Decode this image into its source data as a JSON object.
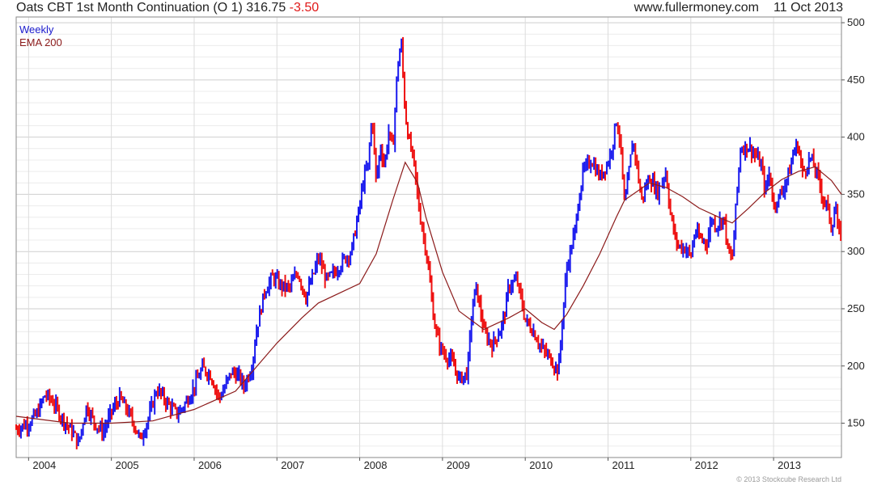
{
  "header": {
    "instrument": "Oats CBT 1st Month Continuation (O 1)",
    "price": "316.75",
    "change": "-3.50",
    "website": "www.fullermoney.com",
    "date": "11 Oct 2013"
  },
  "legend": {
    "weekly": "Weekly",
    "ema": "EMA 200"
  },
  "copyright": "© 2013 Stockcube Research Ltd",
  "colors": {
    "up": "#1a1aee",
    "down": "#ee1111",
    "ema": "#8b1a1a",
    "grid": "#dcdcdc"
  },
  "chart_data": {
    "type": "line",
    "x_range": [
      2003.85,
      2013.82
    ],
    "y_range": [
      120,
      505
    ],
    "y_axis_position": "right",
    "y_ticks": [
      150,
      200,
      250,
      300,
      350,
      400,
      450,
      500
    ],
    "x_ticks": [
      "2004",
      "2005",
      "2006",
      "2007",
      "2008",
      "2009",
      "2010",
      "2011",
      "2012",
      "2013"
    ],
    "grid": true,
    "series": [
      {
        "name": "Weekly",
        "points": [
          [
            2003.85,
            145
          ],
          [
            2004.0,
            150
          ],
          [
            2004.1,
            158
          ],
          [
            2004.2,
            175
          ],
          [
            2004.3,
            168
          ],
          [
            2004.4,
            155
          ],
          [
            2004.5,
            145
          ],
          [
            2004.55,
            140
          ],
          [
            2004.6,
            132
          ],
          [
            2004.7,
            165
          ],
          [
            2004.8,
            150
          ],
          [
            2004.9,
            142
          ],
          [
            2005.0,
            160
          ],
          [
            2005.1,
            172
          ],
          [
            2005.2,
            160
          ],
          [
            2005.3,
            145
          ],
          [
            2005.35,
            135
          ],
          [
            2005.45,
            155
          ],
          [
            2005.55,
            180
          ],
          [
            2005.7,
            165
          ],
          [
            2005.8,
            158
          ],
          [
            2005.9,
            168
          ],
          [
            2006.0,
            182
          ],
          [
            2006.1,
            198
          ],
          [
            2006.2,
            192
          ],
          [
            2006.3,
            172
          ],
          [
            2006.35,
            178
          ],
          [
            2006.45,
            195
          ],
          [
            2006.55,
            190
          ],
          [
            2006.6,
            182
          ],
          [
            2006.7,
            200
          ],
          [
            2006.75,
            230
          ],
          [
            2006.85,
            265
          ],
          [
            2006.95,
            278
          ],
          [
            2007.05,
            270
          ],
          [
            2007.15,
            268
          ],
          [
            2007.25,
            282
          ],
          [
            2007.35,
            260
          ],
          [
            2007.45,
            282
          ],
          [
            2007.5,
            295
          ],
          [
            2007.6,
            275
          ],
          [
            2007.7,
            282
          ],
          [
            2007.8,
            292
          ],
          [
            2007.9,
            300
          ],
          [
            2008.0,
            340
          ],
          [
            2008.05,
            365
          ],
          [
            2008.1,
            375
          ],
          [
            2008.15,
            420
          ],
          [
            2008.2,
            360
          ],
          [
            2008.25,
            392
          ],
          [
            2008.3,
            375
          ],
          [
            2008.35,
            405
          ],
          [
            2008.4,
            388
          ],
          [
            2008.45,
            455
          ],
          [
            2008.5,
            485
          ],
          [
            2008.55,
            420
          ],
          [
            2008.6,
            395
          ],
          [
            2008.65,
            380
          ],
          [
            2008.72,
            335
          ],
          [
            2008.8,
            302
          ],
          [
            2008.85,
            272
          ],
          [
            2008.9,
            238
          ],
          [
            2008.95,
            222
          ],
          [
            2009.0,
            212
          ],
          [
            2009.1,
            205
          ],
          [
            2009.15,
            198
          ],
          [
            2009.2,
            188
          ],
          [
            2009.3,
            194
          ],
          [
            2009.35,
            242
          ],
          [
            2009.4,
            270
          ],
          [
            2009.45,
            252
          ],
          [
            2009.5,
            230
          ],
          [
            2009.6,
            218
          ],
          [
            2009.7,
            232
          ],
          [
            2009.75,
            245
          ],
          [
            2009.8,
            270
          ],
          [
            2009.9,
            275
          ],
          [
            2009.95,
            258
          ],
          [
            2010.0,
            240
          ],
          [
            2010.1,
            230
          ],
          [
            2010.2,
            215
          ],
          [
            2010.3,
            207
          ],
          [
            2010.4,
            195
          ],
          [
            2010.45,
            242
          ],
          [
            2010.5,
            285
          ],
          [
            2010.6,
            318
          ],
          [
            2010.65,
            348
          ],
          [
            2010.7,
            370
          ],
          [
            2010.8,
            380
          ],
          [
            2010.9,
            365
          ],
          [
            2011.0,
            378
          ],
          [
            2011.05,
            392
          ],
          [
            2011.1,
            415
          ],
          [
            2011.15,
            395
          ],
          [
            2011.2,
            338
          ],
          [
            2011.25,
            368
          ],
          [
            2011.3,
            398
          ],
          [
            2011.35,
            375
          ],
          [
            2011.4,
            345
          ],
          [
            2011.5,
            365
          ],
          [
            2011.6,
            352
          ],
          [
            2011.7,
            370
          ],
          [
            2011.75,
            335
          ],
          [
            2011.8,
            315
          ],
          [
            2011.85,
            305
          ],
          [
            2011.95,
            302
          ],
          [
            2012.0,
            295
          ],
          [
            2012.05,
            318
          ],
          [
            2012.1,
            312
          ],
          [
            2012.2,
            308
          ],
          [
            2012.25,
            330
          ],
          [
            2012.3,
            322
          ],
          [
            2012.4,
            330
          ],
          [
            2012.45,
            300
          ],
          [
            2012.5,
            292
          ],
          [
            2012.55,
            345
          ],
          [
            2012.6,
            390
          ],
          [
            2012.7,
            392
          ],
          [
            2012.8,
            382
          ],
          [
            2012.85,
            375
          ],
          [
            2012.9,
            352
          ],
          [
            2012.95,
            370
          ],
          [
            2013.0,
            340
          ],
          [
            2013.1,
            352
          ],
          [
            2013.2,
            372
          ],
          [
            2013.25,
            390
          ],
          [
            2013.3,
            392
          ],
          [
            2013.35,
            368
          ],
          [
            2013.45,
            382
          ],
          [
            2013.5,
            372
          ],
          [
            2013.55,
            362
          ],
          [
            2013.6,
            345
          ],
          [
            2013.65,
            340
          ],
          [
            2013.7,
            320
          ],
          [
            2013.72,
            328
          ],
          [
            2013.75,
            340
          ],
          [
            2013.78,
            315
          ],
          [
            2013.82,
            317
          ]
        ]
      },
      {
        "name": "EMA 200",
        "points": [
          [
            2003.85,
            156
          ],
          [
            2004.5,
            150
          ],
          [
            2005.0,
            150
          ],
          [
            2005.5,
            152
          ],
          [
            2006.0,
            162
          ],
          [
            2006.5,
            178
          ],
          [
            2007.0,
            220
          ],
          [
            2007.3,
            242
          ],
          [
            2007.5,
            255
          ],
          [
            2008.0,
            272
          ],
          [
            2008.2,
            298
          ],
          [
            2008.4,
            345
          ],
          [
            2008.55,
            378
          ],
          [
            2008.7,
            360
          ],
          [
            2008.8,
            330
          ],
          [
            2009.0,
            282
          ],
          [
            2009.2,
            248
          ],
          [
            2009.5,
            232
          ],
          [
            2009.8,
            242
          ],
          [
            2010.0,
            250
          ],
          [
            2010.2,
            238
          ],
          [
            2010.35,
            232
          ],
          [
            2010.5,
            245
          ],
          [
            2010.7,
            270
          ],
          [
            2010.9,
            298
          ],
          [
            2011.1,
            330
          ],
          [
            2011.2,
            345
          ],
          [
            2011.5,
            360
          ],
          [
            2011.7,
            356
          ],
          [
            2011.9,
            348
          ],
          [
            2012.1,
            338
          ],
          [
            2012.4,
            328
          ],
          [
            2012.5,
            325
          ],
          [
            2012.7,
            338
          ],
          [
            2012.9,
            352
          ],
          [
            2013.1,
            363
          ],
          [
            2013.3,
            370
          ],
          [
            2013.5,
            374
          ],
          [
            2013.7,
            362
          ],
          [
            2013.82,
            350
          ]
        ]
      }
    ]
  }
}
